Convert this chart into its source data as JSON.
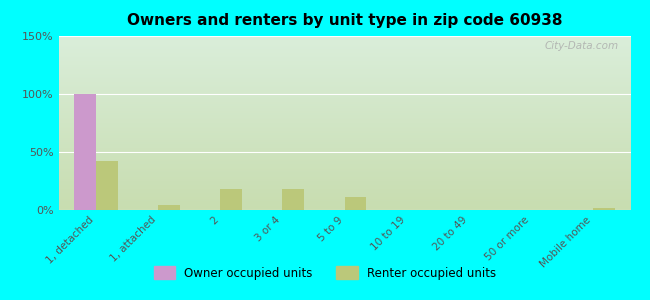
{
  "title": "Owners and renters by unit type in zip code 60938",
  "categories": [
    "1, detached",
    "1, attached",
    "2",
    "3 or 4",
    "5 to 9",
    "10 to 19",
    "20 to 49",
    "50 or more",
    "Mobile home"
  ],
  "owner_values": [
    100,
    0,
    0,
    0,
    0,
    0,
    0,
    0,
    0
  ],
  "renter_values": [
    42,
    4,
    18,
    18,
    11,
    0,
    0,
    0,
    2
  ],
  "owner_color": "#cc99cc",
  "renter_color": "#bbc87a",
  "ylim": [
    0,
    150
  ],
  "yticks": [
    0,
    50,
    100,
    150
  ],
  "ytick_labels": [
    "0%",
    "50%",
    "100%",
    "150%"
  ],
  "bg_outer": "#00ffff",
  "bar_width": 0.35,
  "legend_owner": "Owner occupied units",
  "legend_renter": "Renter occupied units",
  "watermark": "City-Data.com",
  "grad_top": "#daeeda",
  "grad_bottom": "#c8ddb0"
}
